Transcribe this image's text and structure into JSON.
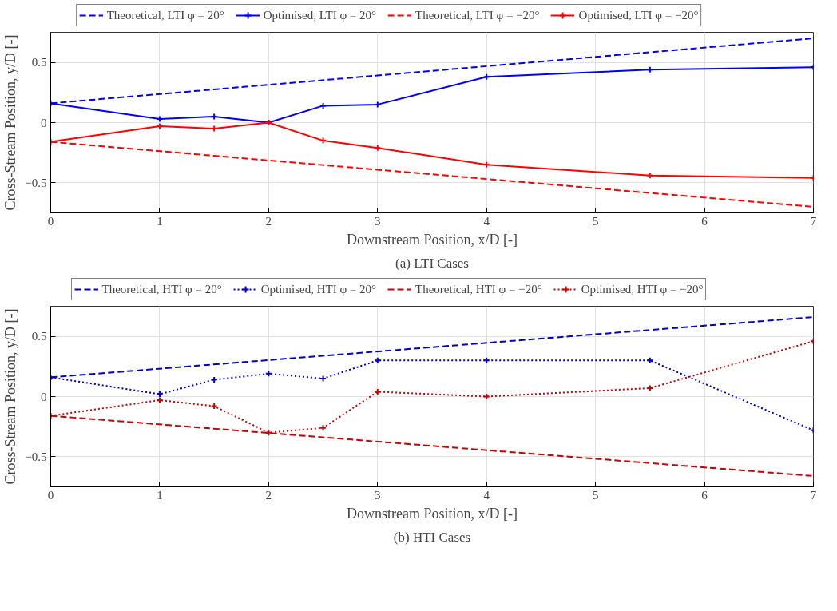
{
  "chart_data": [
    {
      "type": "line",
      "xlabel": "Downstream Position, x/D [-]",
      "ylabel": "Cross-Stream Position, y/D [-]",
      "annotations": [
        "(a) LTI Cases"
      ],
      "xlim": [
        0,
        7
      ],
      "ylim": [
        -0.75,
        0.75
      ],
      "xticks": [
        0,
        1,
        2,
        3,
        4,
        5,
        6,
        7
      ],
      "yticks": [
        -0.5,
        0,
        0.5
      ],
      "grid": true,
      "legend": "top",
      "series": [
        {
          "name": "Theoretical, LTI φ = 20°",
          "color": "#0000ff",
          "line_style": "dashed",
          "x": [
            0,
            7
          ],
          "values": [
            0.16,
            0.7
          ]
        },
        {
          "name": "Optimised, LTI φ = 20°",
          "color": "#0000ff",
          "line_style": "solid",
          "marker": "cross",
          "x": [
            0,
            1,
            1.5,
            2,
            2.5,
            3,
            4,
            5.5,
            7
          ],
          "values": [
            0.16,
            0.03,
            0.05,
            0,
            0.14,
            0.15,
            0.38,
            0.44,
            0.46
          ]
        },
        {
          "name": "Theoretical, LTI φ = −20°",
          "color": "#ff0000",
          "line_style": "dashed",
          "x": [
            0,
            7
          ],
          "values": [
            -0.16,
            -0.7
          ]
        },
        {
          "name": "Optimised, LTI φ = −20°",
          "color": "#ff0000",
          "line_style": "solid",
          "marker": "cross",
          "x": [
            0,
            1,
            1.5,
            2,
            2.5,
            3,
            4,
            5.5,
            7
          ],
          "values": [
            -0.16,
            -0.03,
            -0.05,
            0,
            -0.15,
            -0.21,
            -0.35,
            -0.44,
            -0.46
          ]
        }
      ]
    },
    {
      "type": "line",
      "xlabel": "Downstream Position, x/D [-]",
      "ylabel": "Cross-Stream Position, y/D [-]",
      "annotations": [
        "(b) HTI Cases"
      ],
      "xlim": [
        0,
        7
      ],
      "ylim": [
        -0.75,
        0.75
      ],
      "xticks": [
        0,
        1,
        2,
        3,
        4,
        5,
        6,
        7
      ],
      "yticks": [
        -0.5,
        0,
        0.5
      ],
      "grid": true,
      "legend": "top",
      "series": [
        {
          "name": "Theoretical, HTI φ = 20°",
          "color": "#0000cc",
          "line_style": "dashed",
          "x": [
            0,
            7
          ],
          "values": [
            0.16,
            0.66
          ]
        },
        {
          "name": "Optimised, HTI φ = 20°",
          "color": "#0000cc",
          "line_style": "dotted",
          "marker": "cross",
          "x": [
            0,
            1,
            1.5,
            2,
            2.5,
            3,
            4,
            5.5,
            7
          ],
          "values": [
            0.16,
            0.02,
            0.14,
            0.19,
            0.15,
            0.3,
            0.3,
            0.3,
            -0.28
          ]
        },
        {
          "name": "Theoretical, HTI φ = −20°",
          "color": "#cc0000",
          "line_style": "dashed",
          "x": [
            0,
            7
          ],
          "values": [
            -0.16,
            -0.66
          ]
        },
        {
          "name": "Optimised, HTI φ = −20°",
          "color": "#cc0000",
          "line_style": "dotted",
          "marker": "cross",
          "x": [
            0,
            1,
            1.5,
            2,
            2.5,
            3,
            4,
            5.5,
            7
          ],
          "values": [
            -0.16,
            -0.03,
            -0.08,
            -0.3,
            -0.26,
            0.04,
            0.0,
            0.07,
            0.46
          ]
        }
      ]
    }
  ]
}
